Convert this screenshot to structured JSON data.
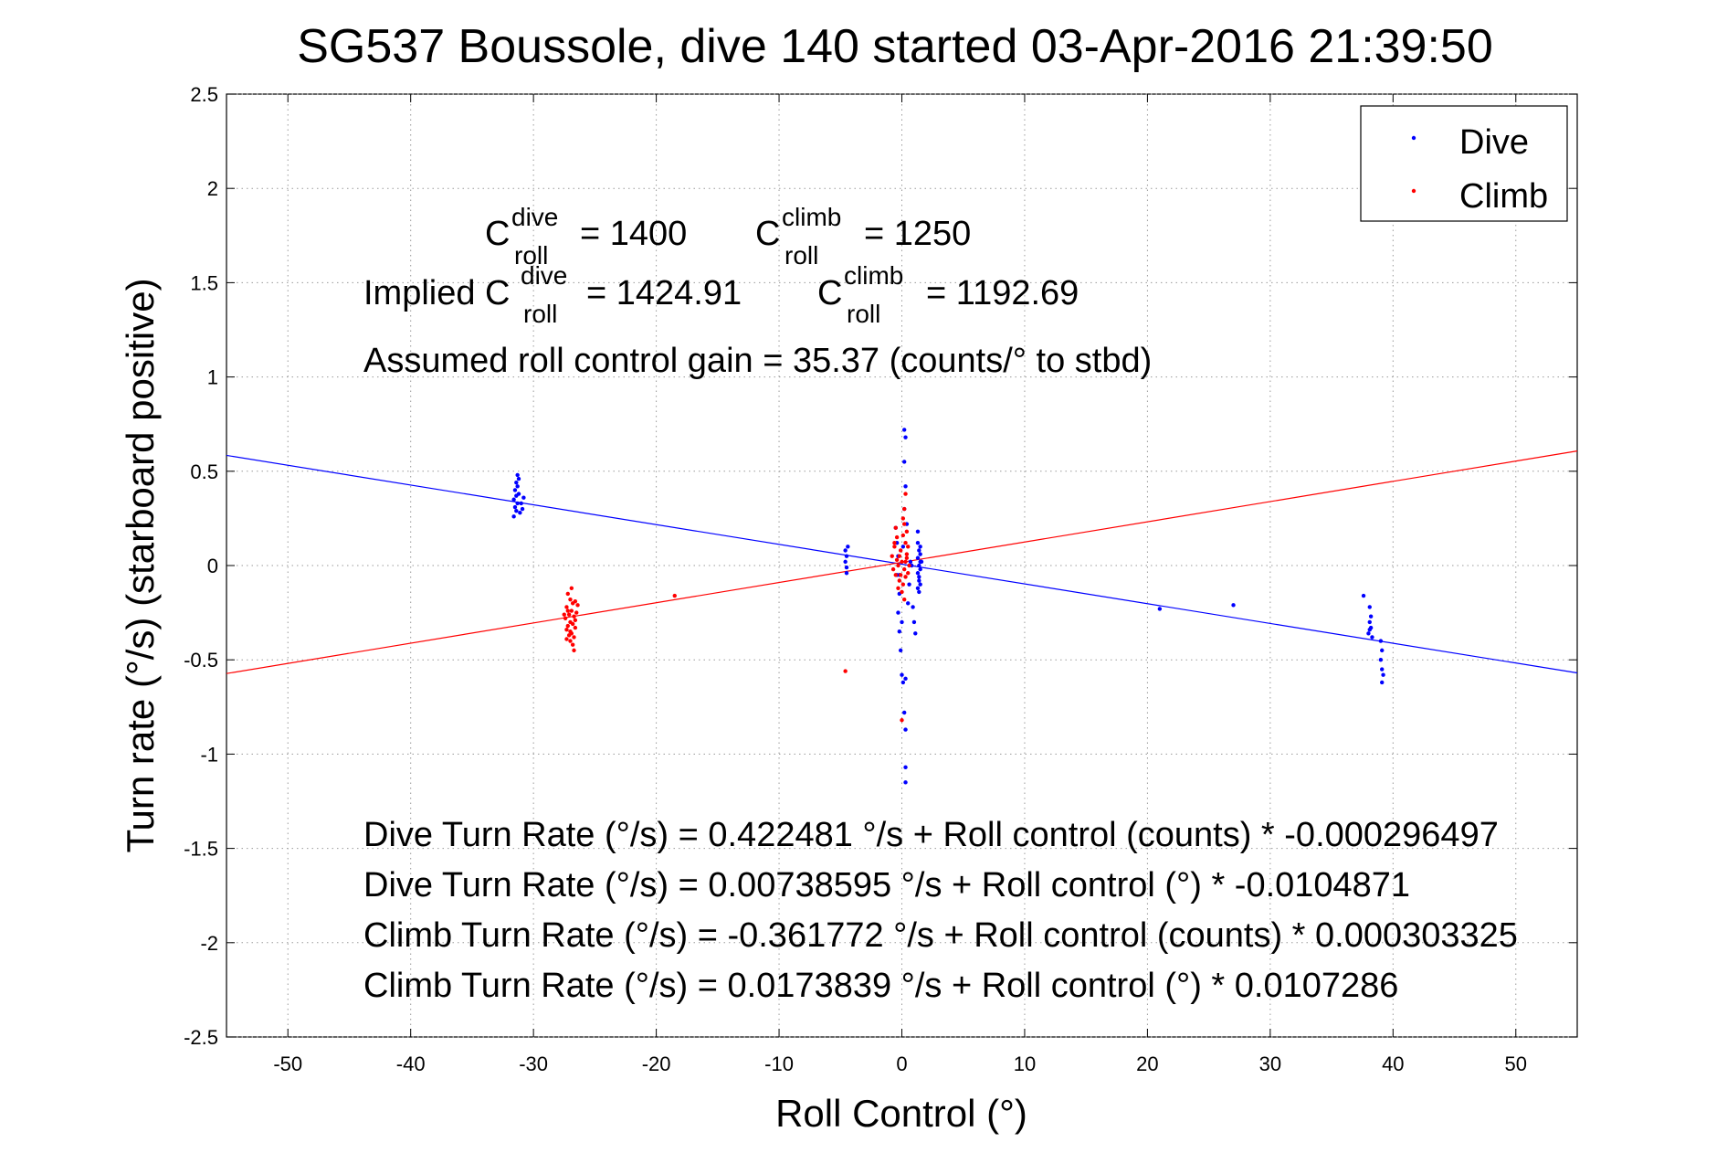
{
  "chart_data": {
    "type": "scatter",
    "title": "SG537 Boussole, dive 140 started 03-Apr-2016 21:39:50",
    "xlabel": "Roll Control (°)",
    "ylabel": "Turn rate (°/s) (starboard positive)",
    "xlim": [
      -55,
      55
    ],
    "ylim": [
      -2.5,
      2.5
    ],
    "xticks": [
      -50,
      -40,
      -30,
      -20,
      -10,
      0,
      10,
      20,
      30,
      40,
      50
    ],
    "yticks": [
      -2.5,
      -2,
      -1.5,
      -1,
      -0.5,
      0,
      0.5,
      1,
      1.5,
      2,
      2.5
    ],
    "grid": true,
    "legend_position": "top-right",
    "series": [
      {
        "name": "Dive",
        "color": "#0000ff",
        "fit": {
          "intercept": 0.00738595,
          "slope": -0.0104871
        },
        "points": [
          [
            -31.6,
            0.26
          ],
          [
            -31.4,
            0.29
          ],
          [
            -31.5,
            0.31
          ],
          [
            -31.3,
            0.33
          ],
          [
            -31.6,
            0.35
          ],
          [
            -31.4,
            0.37
          ],
          [
            -31.2,
            0.38
          ],
          [
            -31.5,
            0.4
          ],
          [
            -31.3,
            0.42
          ],
          [
            -31.4,
            0.44
          ],
          [
            -31.2,
            0.46
          ],
          [
            -31.3,
            0.48
          ],
          [
            -31.0,
            0.33
          ],
          [
            -30.9,
            0.3
          ],
          [
            -31.1,
            0.28
          ],
          [
            -30.8,
            0.36
          ],
          [
            -4.6,
            0.08
          ],
          [
            -4.5,
            0.05
          ],
          [
            -4.6,
            0.02
          ],
          [
            -4.5,
            -0.01
          ],
          [
            -4.4,
            0.1
          ],
          [
            -4.5,
            -0.04
          ],
          [
            -0.5,
            0.2
          ],
          [
            -0.4,
            0.12
          ],
          [
            -0.3,
            0.05
          ],
          [
            -0.4,
            -0.05
          ],
          [
            -0.2,
            -0.15
          ],
          [
            -0.3,
            -0.25
          ],
          [
            -0.2,
            -0.35
          ],
          [
            -0.1,
            -0.45
          ],
          [
            -0.2,
            -0.05
          ],
          [
            0.0,
            -0.3
          ],
          [
            0.0,
            -0.58
          ],
          [
            0.1,
            -0.62
          ],
          [
            0.2,
            0.72
          ],
          [
            0.3,
            0.68
          ],
          [
            0.2,
            0.55
          ],
          [
            0.3,
            0.42
          ],
          [
            0.2,
            0.3
          ],
          [
            0.3,
            -0.6
          ],
          [
            0.2,
            -0.78
          ],
          [
            0.3,
            -0.87
          ],
          [
            0.3,
            -1.07
          ],
          [
            0.3,
            -1.15
          ],
          [
            0.4,
            0.22
          ],
          [
            0.1,
            0.1
          ],
          [
            0.5,
            -0.2
          ],
          [
            0.6,
            -0.1
          ],
          [
            0.8,
            0.0
          ],
          [
            0.9,
            -0.22
          ],
          [
            1.0,
            -0.3
          ],
          [
            0.7,
            0.02
          ],
          [
            1.1,
            -0.36
          ],
          [
            1.3,
            0.12
          ],
          [
            1.4,
            0.08
          ],
          [
            1.3,
            0.04
          ],
          [
            1.4,
            0.0
          ],
          [
            1.3,
            -0.04
          ],
          [
            1.4,
            -0.08
          ],
          [
            1.3,
            -0.12
          ],
          [
            1.5,
            0.1
          ],
          [
            1.5,
            0.06
          ],
          [
            1.5,
            -0.02
          ],
          [
            1.5,
            -0.1
          ],
          [
            1.6,
            0.02
          ],
          [
            1.4,
            -0.06
          ],
          [
            1.5,
            0.02
          ],
          [
            1.3,
            0.18
          ],
          [
            1.4,
            -0.14
          ],
          [
            21.0,
            -0.23
          ],
          [
            27.0,
            -0.21
          ],
          [
            37.6,
            -0.16
          ],
          [
            38.1,
            -0.22
          ],
          [
            38.2,
            -0.27
          ],
          [
            38.1,
            -0.3
          ],
          [
            38.2,
            -0.33
          ],
          [
            38.0,
            -0.36
          ],
          [
            38.3,
            -0.38
          ],
          [
            38.1,
            -0.34
          ],
          [
            39.0,
            -0.4
          ],
          [
            39.1,
            -0.45
          ],
          [
            39.0,
            -0.5
          ],
          [
            39.1,
            -0.55
          ],
          [
            39.2,
            -0.58
          ],
          [
            39.1,
            -0.62
          ]
        ]
      },
      {
        "name": "Climb",
        "color": "#ff0000",
        "fit": {
          "intercept": 0.0173839,
          "slope": 0.0107286
        },
        "points": [
          [
            -27.2,
            -0.15
          ],
          [
            -27.0,
            -0.18
          ],
          [
            -26.8,
            -0.2
          ],
          [
            -27.3,
            -0.22
          ],
          [
            -26.9,
            -0.24
          ],
          [
            -27.1,
            -0.26
          ],
          [
            -26.7,
            -0.27
          ],
          [
            -27.4,
            -0.28
          ],
          [
            -27.0,
            -0.3
          ],
          [
            -26.8,
            -0.31
          ],
          [
            -27.2,
            -0.32
          ],
          [
            -26.6,
            -0.33
          ],
          [
            -27.3,
            -0.34
          ],
          [
            -26.9,
            -0.36
          ],
          [
            -27.1,
            -0.37
          ],
          [
            -26.7,
            -0.38
          ],
          [
            -27.0,
            -0.4
          ],
          [
            -26.8,
            -0.42
          ],
          [
            -27.2,
            -0.24
          ],
          [
            -26.5,
            -0.25
          ],
          [
            -26.6,
            -0.29
          ],
          [
            -27.5,
            -0.26
          ],
          [
            -26.4,
            -0.21
          ],
          [
            -26.9,
            -0.12
          ],
          [
            -26.7,
            -0.45
          ],
          [
            -27.0,
            -0.35
          ],
          [
            -26.6,
            -0.19
          ],
          [
            -27.3,
            -0.39
          ],
          [
            -18.5,
            -0.16
          ],
          [
            -4.6,
            -0.56
          ],
          [
            -0.8,
            0.05
          ],
          [
            -0.6,
            0.1
          ],
          [
            -0.4,
            0.15
          ],
          [
            -0.7,
            -0.02
          ],
          [
            -0.5,
            -0.05
          ],
          [
            -0.3,
            0.0
          ],
          [
            -0.2,
            0.05
          ],
          [
            -0.1,
            0.08
          ],
          [
            -0.2,
            -0.08
          ],
          [
            0.0,
            0.02
          ],
          [
            -0.5,
            0.2
          ],
          [
            0.1,
            0.25
          ],
          [
            0.2,
            0.3
          ],
          [
            0.3,
            0.38
          ],
          [
            0.2,
            0.22
          ],
          [
            0.1,
            0.16
          ],
          [
            0.3,
            0.12
          ],
          [
            0.4,
            0.06
          ],
          [
            0.2,
            -0.02
          ],
          [
            0.3,
            -0.06
          ],
          [
            0.1,
            -0.1
          ],
          [
            0.0,
            -0.14
          ],
          [
            0.2,
            -0.18
          ],
          [
            -0.1,
            -0.05
          ],
          [
            0.0,
            -0.82
          ],
          [
            0.4,
            0.04
          ],
          [
            0.5,
            0.1
          ],
          [
            0.6,
            0.0
          ],
          [
            0.5,
            -0.04
          ],
          [
            -0.3,
            -0.12
          ],
          [
            -0.6,
            0.12
          ],
          [
            0.4,
            0.18
          ],
          [
            0.3,
            0.02
          ],
          [
            -0.4,
            0.03
          ]
        ]
      }
    ],
    "annotations": {
      "c_roll_dive": "= 1400",
      "c_roll_climb": "= 1250",
      "implied_prefix": "Implied C",
      "implied_dive": "= 1424.91",
      "implied_climb": "= 1192.69",
      "c_letter": "C",
      "sup_dive": "dive",
      "sup_climb": "climb",
      "sub_roll": "roll",
      "gain": "Assumed roll control gain = 35.37 (counts/° to stbd)",
      "eq_dive_counts": "Dive Turn Rate (°/s) = 0.422481 °/s + Roll control (counts) * -0.000296497",
      "eq_dive_deg": "Dive Turn Rate (°/s) = 0.00738595 °/s + Roll control (°) * -0.0104871",
      "eq_climb_counts": "Climb Turn Rate (°/s) = -0.361772 °/s + Roll control (counts) * 0.000303325",
      "eq_climb_deg": "Climb Turn Rate (°/s) = 0.0173839 °/s + Roll control (°) * 0.0107286"
    }
  }
}
